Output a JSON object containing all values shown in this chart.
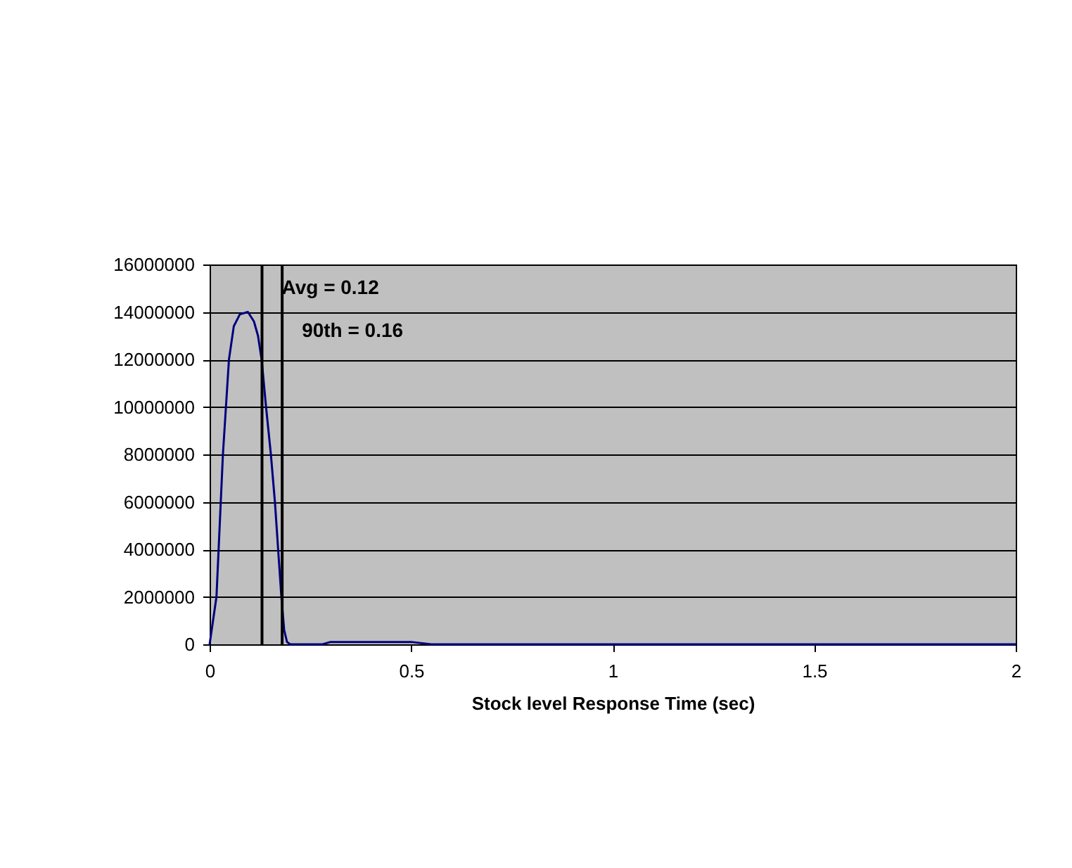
{
  "chart_data": {
    "type": "line",
    "xlabel": "Stock level Response Time (sec)",
    "x": [
      0,
      0.017,
      0.033,
      0.048,
      0.06,
      0.075,
      0.095,
      0.11,
      0.12,
      0.129,
      0.14,
      0.152,
      0.162,
      0.17,
      0.178,
      0.185,
      0.192,
      0.2,
      0.28,
      0.3,
      0.4,
      0.5,
      0.55,
      2
    ],
    "series": [
      {
        "color": "#000080",
        "values": [
          0,
          2000000,
          8000000,
          12000000,
          13400000,
          13900000,
          14000000,
          13600000,
          13000000,
          12000000,
          10000000,
          8000000,
          6000000,
          4000000,
          2000000,
          600000,
          100000,
          0,
          0,
          100000,
          100000,
          100000,
          0,
          0
        ]
      }
    ],
    "xlim": [
      0,
      2
    ],
    "xticks": [
      0,
      0.5,
      1,
      1.5,
      2
    ],
    "ylim": [
      0,
      16000000
    ],
    "yticks": [
      0,
      2000000,
      4000000,
      6000000,
      8000000,
      10000000,
      12000000,
      14000000,
      16000000
    ],
    "grid": "y",
    "marker": "none",
    "line_style": "solid",
    "ref_lines": [
      {
        "axis": "x",
        "value": 0.13,
        "color": "#000000"
      },
      {
        "axis": "x",
        "value": 0.18,
        "color": "#000000"
      }
    ],
    "annotations": [
      {
        "text": "Avg = 0.12",
        "x": 0.13,
        "y": 15000000
      },
      {
        "text": "90th = 0.16",
        "x": 0.18,
        "y": 13200000
      }
    ]
  }
}
